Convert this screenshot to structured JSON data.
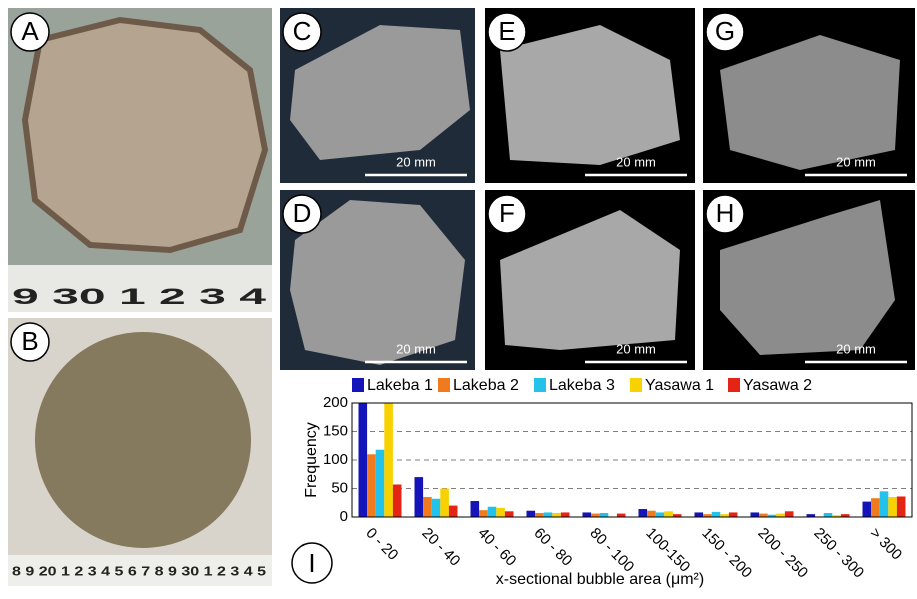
{
  "panels": [
    {
      "label": "A",
      "ruler": "9 30 1 2 3 4"
    },
    {
      "label": "B",
      "ruler": "8 9 20 1 2 3 4 5 6 7 8 9 30 1 2 3 4 5"
    },
    {
      "label": "C",
      "scale_bar": "20 mm"
    },
    {
      "label": "D",
      "scale_bar": "20 mm"
    },
    {
      "label": "E",
      "scale_bar": "20 mm"
    },
    {
      "label": "F",
      "scale_bar": "20 mm"
    },
    {
      "label": "G",
      "scale_bar": "20 mm"
    },
    {
      "label": "H",
      "scale_bar": "20 mm"
    }
  ],
  "chart_data": {
    "type": "bar",
    "panel_label": "I",
    "x_label": "x-sectional bubble area (μm²)",
    "y_label": "Frequency",
    "categories": [
      "0 - 20",
      "20 - 40",
      "40 - 60",
      "60 - 80",
      "80 - 100",
      "100-150",
      "150 - 200",
      "200 - 250",
      "250 - 300",
      "> 300"
    ],
    "series": [
      {
        "name": "Lakeba 1",
        "color": "#1414b8",
        "values": [
          200,
          70,
          28,
          11,
          8,
          14,
          8,
          8,
          5,
          27
        ]
      },
      {
        "name": "Lakeba 2",
        "color": "#f07a1e",
        "values": [
          110,
          35,
          12,
          7,
          6,
          11,
          5,
          6,
          1,
          33
        ]
      },
      {
        "name": "Lakeba 3",
        "color": "#22c2ea",
        "values": [
          118,
          32,
          18,
          8,
          7,
          8,
          9,
          4,
          7,
          45
        ]
      },
      {
        "name": "Yasawa 1",
        "color": "#f8d200",
        "values": [
          200,
          50,
          16,
          7,
          1,
          10,
          5,
          6,
          3,
          35
        ]
      },
      {
        "name": "Yasawa 2",
        "color": "#e42414",
        "values": [
          57,
          20,
          10,
          8,
          6,
          5,
          8,
          10,
          5,
          36
        ]
      }
    ],
    "ylim": [
      0,
      200
    ],
    "yticks": [
      0,
      50,
      100,
      150,
      200
    ],
    "grid": true
  }
}
